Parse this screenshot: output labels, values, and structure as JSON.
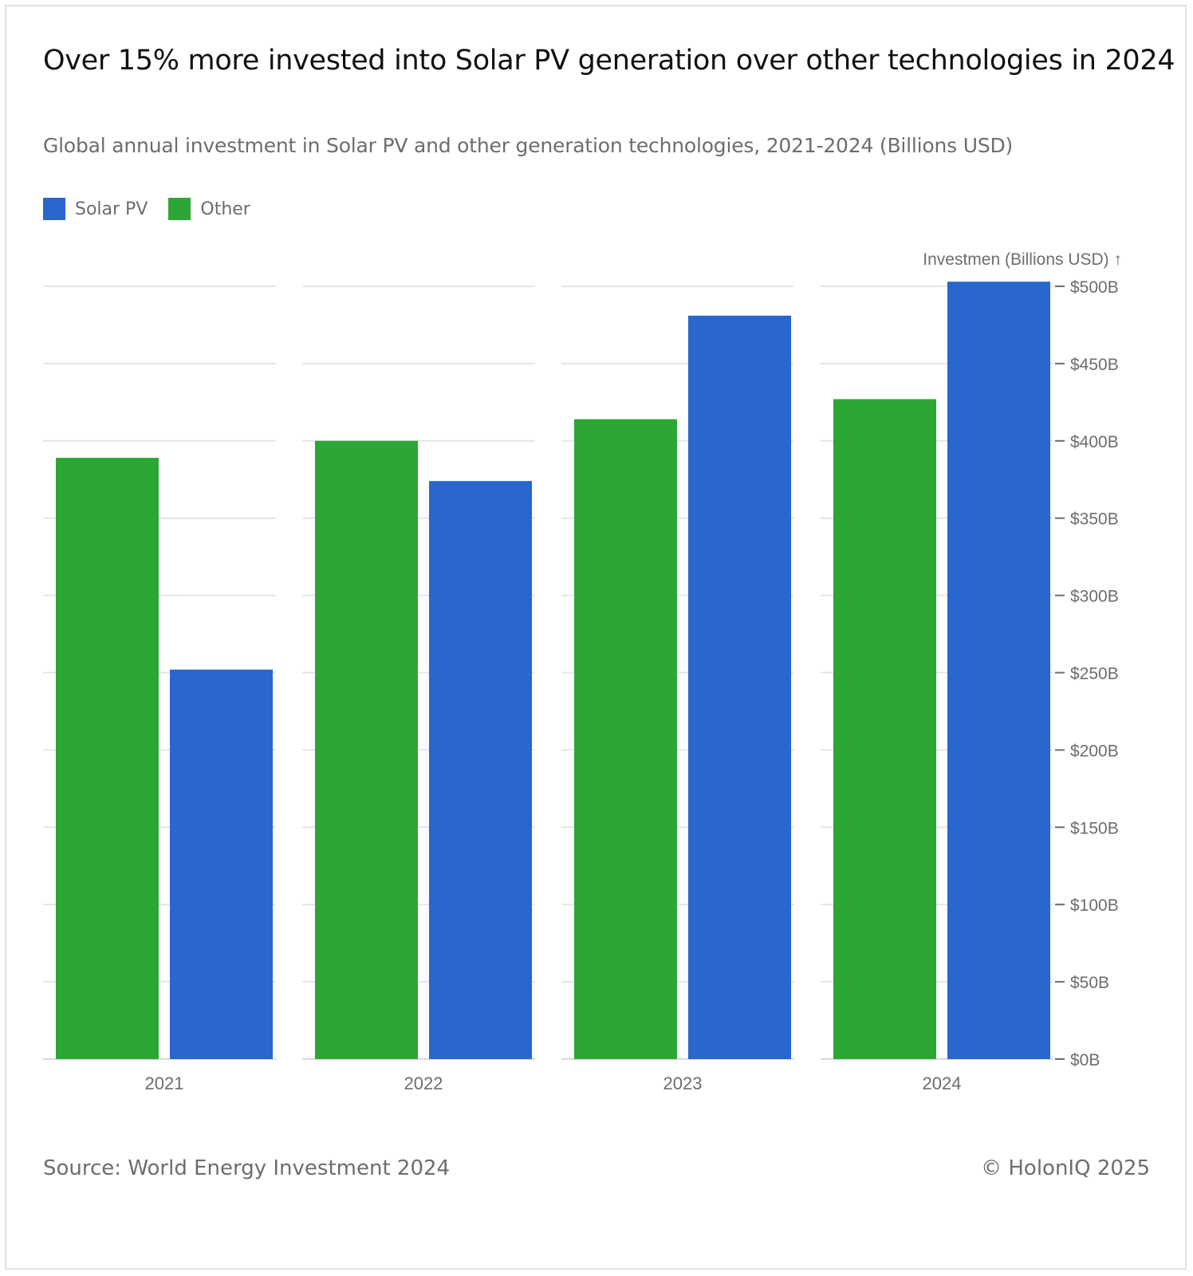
{
  "title": "Over 15% more invested into Solar PV generation over other technologies in 2024",
  "subtitle": "Global annual investment in Solar PV and other generation technologies, 2021-2024 (Billions USD)",
  "legend": [
    {
      "label": "Solar PV",
      "color": "#2966CE"
    },
    {
      "label": "Other",
      "color": "#2CA635"
    }
  ],
  "footer": {
    "source": "Source: World Energy Investment 2024",
    "copyright": "© HolonIQ 2025"
  },
  "chart_data": {
    "type": "bar",
    "categories": [
      "2021",
      "2022",
      "2023",
      "2024"
    ],
    "series": [
      {
        "name": "Other",
        "color": "#2CA635",
        "values": [
          389,
          400,
          414,
          427
        ]
      },
      {
        "name": "Solar PV",
        "color": "#2966CE",
        "values": [
          252,
          374,
          481,
          503
        ]
      }
    ],
    "ylabel": "Investmen (Billions USD) ↑",
    "ylim": [
      0,
      500
    ],
    "yticks": [
      0,
      50,
      100,
      150,
      200,
      250,
      300,
      350,
      400,
      450,
      500
    ],
    "ytick_labels": [
      "$0B",
      "$50B",
      "$100B",
      "$150B",
      "$200B",
      "$250B",
      "$300B",
      "$350B",
      "$400B",
      "$450B",
      "$500B"
    ],
    "y_axis_position": "right",
    "grid": true,
    "legend_position": "top-left"
  }
}
